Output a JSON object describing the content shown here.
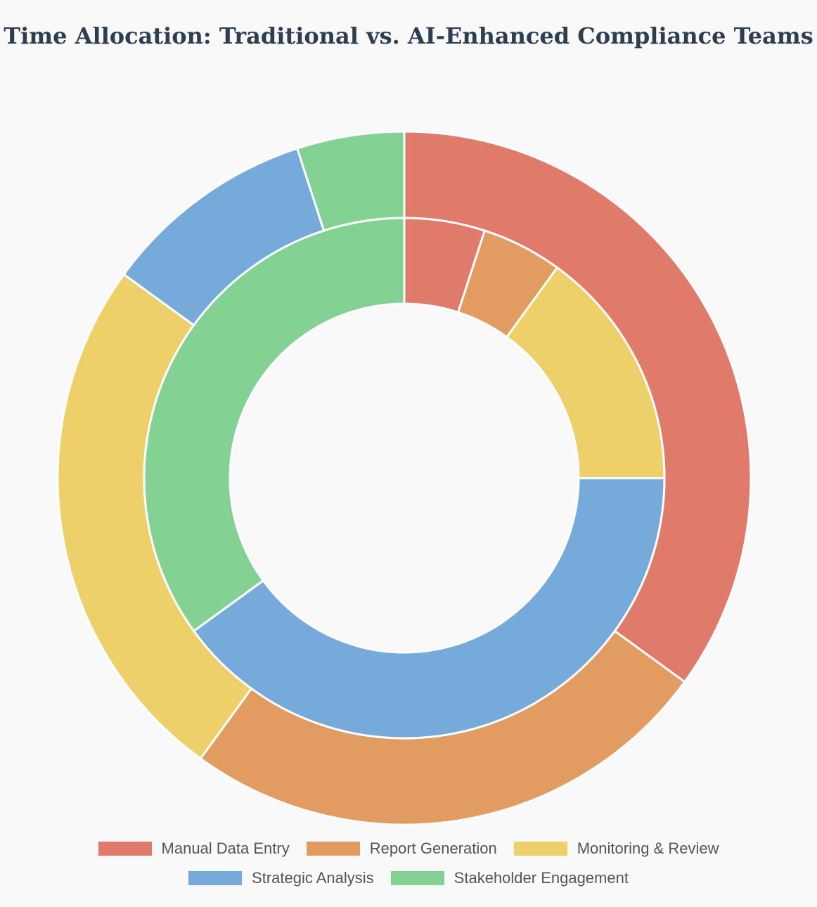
{
  "chart_data": {
    "type": "pie",
    "variant": "nested-doughnut",
    "title": "Time Allocation: Traditional vs. AI-Enhanced Compliance Teams",
    "categories": [
      "Manual Data Entry",
      "Report Generation",
      "Monitoring & Review",
      "Strategic Analysis",
      "Stakeholder Engagement"
    ],
    "colors": [
      "#e07a6b",
      "#e29b61",
      "#edd06a",
      "#76aadb",
      "#84d293"
    ],
    "series": [
      {
        "ring": "outer",
        "values": [
          35,
          25,
          25,
          10,
          5
        ]
      },
      {
        "ring": "inner",
        "values": [
          5,
          5,
          15,
          40,
          35
        ]
      }
    ],
    "legend_position": "bottom"
  }
}
